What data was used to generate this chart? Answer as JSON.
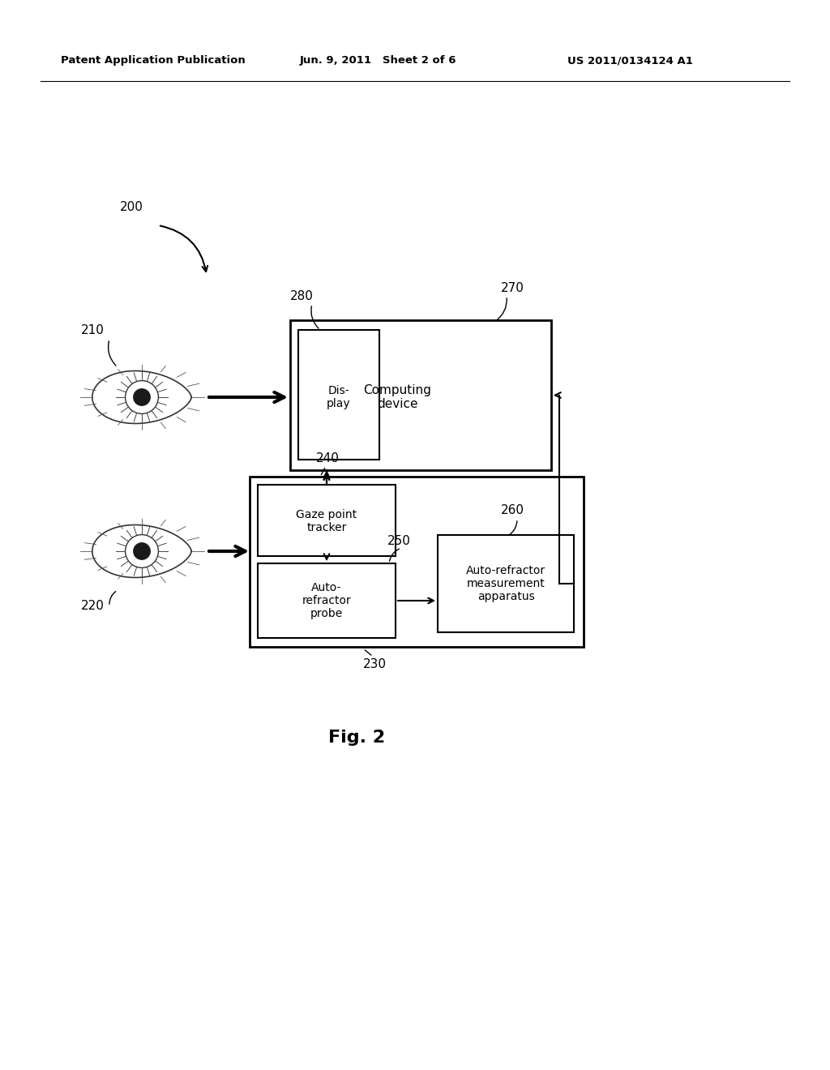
{
  "bg_color": "#ffffff",
  "header_left": "Patent Application Publication",
  "header_mid": "Jun. 9, 2011   Sheet 2 of 6",
  "header_right": "US 2011/0134124 A1",
  "fig_label": "Fig. 2",
  "label_200": "200",
  "label_210": "210",
  "label_220": "220",
  "label_230": "230",
  "label_240": "240",
  "label_250": "250",
  "label_260": "260",
  "label_270": "270",
  "label_280": "280",
  "box_display_text": "Dis-\nplay",
  "box_computing_text": "Computing\ndevice",
  "box_gaze_text": "Gaze point\ntracker",
  "box_autoref_probe_text": "Auto-\nrefractor\nprobe",
  "box_autoref_meas_text": "Auto-refractor\nmeasurement\napparatus",
  "font_color": "#000000",
  "box_line_color": "#000000",
  "arrow_color": "#000000"
}
